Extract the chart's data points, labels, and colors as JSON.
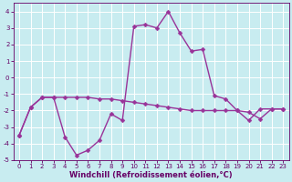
{
  "xlabel": "Windchill (Refroidissement éolien,°C)",
  "background_color": "#c8ecf0",
  "grid_color": "#ffffff",
  "line_color": "#993399",
  "line1_x": [
    0,
    1,
    2,
    3,
    4,
    5,
    6,
    7,
    8,
    9,
    10,
    11,
    12,
    13,
    14,
    15,
    16,
    17,
    18,
    19,
    20,
    21,
    22,
    23
  ],
  "line1_y": [
    -3.5,
    -1.8,
    -1.2,
    -1.2,
    -3.6,
    -4.7,
    -4.4,
    -3.8,
    -2.2,
    -2.6,
    3.1,
    3.2,
    3.0,
    4.0,
    2.7,
    1.6,
    1.7,
    -1.1,
    -1.3,
    -2.0,
    -2.6,
    -1.9,
    -1.9,
    -1.9
  ],
  "line2_x": [
    0,
    1,
    2,
    3,
    4,
    5,
    6,
    7,
    8,
    9,
    10,
    11,
    12,
    13,
    14,
    15,
    16,
    17,
    18,
    19,
    20,
    21,
    22,
    23
  ],
  "line2_y": [
    -3.5,
    -1.8,
    -1.2,
    -1.2,
    -1.2,
    -1.2,
    -1.2,
    -1.3,
    -1.3,
    -1.4,
    -1.5,
    -1.6,
    -1.7,
    -1.8,
    -1.9,
    -2.0,
    -2.0,
    -2.0,
    -2.0,
    -2.0,
    -2.1,
    -2.5,
    -1.9,
    -1.9
  ],
  "ylim": [
    -5,
    4.5
  ],
  "xlim": [
    -0.5,
    23.5
  ],
  "yticks": [
    -5,
    -4,
    -3,
    -2,
    -1,
    0,
    1,
    2,
    3,
    4
  ],
  "xticks": [
    0,
    1,
    2,
    3,
    4,
    5,
    6,
    7,
    8,
    9,
    10,
    11,
    12,
    13,
    14,
    15,
    16,
    17,
    18,
    19,
    20,
    21,
    22,
    23
  ],
  "marker": "D",
  "marker_size": 2.5,
  "line_width": 1.0,
  "tick_fontsize": 5.0,
  "xlabel_fontsize": 6.0,
  "figsize": [
    3.2,
    2.0
  ],
  "dpi": 100
}
